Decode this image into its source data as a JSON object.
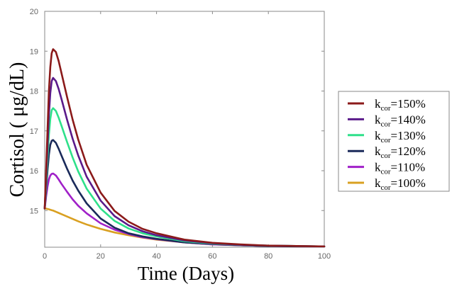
{
  "chart_data": {
    "type": "line",
    "xlabel": "Time (Days)",
    "ylabel": "Cortisol ( μg/dL)",
    "xlim": [
      0,
      100
    ],
    "ylim": [
      14.08,
      20
    ],
    "x_ticks": [
      0,
      20,
      40,
      60,
      80,
      100
    ],
    "y_ticks": [
      15,
      16,
      17,
      18,
      19,
      20
    ],
    "grid": false,
    "legend_position": "right",
    "legend_prefix": "k",
    "legend_subscript": "cor",
    "series": [
      {
        "name": "kcor=150%",
        "value_label": "=150%",
        "color": "#8b1a1a",
        "x": [
          0,
          0.5,
          1,
          1.5,
          2,
          2.5,
          3,
          4,
          5,
          6,
          8,
          10,
          12,
          15,
          20,
          25,
          30,
          35,
          40,
          50,
          60,
          70,
          80,
          90,
          100
        ],
        "y": [
          15.05,
          16.0,
          17.0,
          18.0,
          18.6,
          18.95,
          19.05,
          18.98,
          18.75,
          18.45,
          17.85,
          17.28,
          16.78,
          16.15,
          15.45,
          14.99,
          14.72,
          14.54,
          14.43,
          14.27,
          14.19,
          14.15,
          14.12,
          14.11,
          14.1
        ]
      },
      {
        "name": "kcor=140%",
        "value_label": "=140%",
        "color": "#5a1a8a",
        "x": [
          0,
          0.5,
          1,
          1.5,
          2,
          2.5,
          3,
          4,
          5,
          6,
          8,
          10,
          12,
          15,
          20,
          25,
          30,
          35,
          40,
          50,
          60,
          70,
          80,
          90,
          100
        ],
        "y": [
          15.05,
          15.8,
          16.6,
          17.4,
          17.95,
          18.25,
          18.33,
          18.25,
          18.05,
          17.8,
          17.28,
          16.8,
          16.38,
          15.85,
          15.25,
          14.86,
          14.63,
          14.48,
          14.38,
          14.25,
          14.18,
          14.14,
          14.12,
          14.11,
          14.1
        ]
      },
      {
        "name": "kcor=130%",
        "value_label": "=130%",
        "color": "#2ee08a",
        "x": [
          0,
          0.5,
          1,
          1.5,
          2,
          2.5,
          3,
          4,
          5,
          6,
          8,
          10,
          12,
          15,
          20,
          25,
          30,
          35,
          40,
          50,
          60,
          70,
          80,
          90,
          100
        ],
        "y": [
          15.05,
          15.6,
          16.3,
          16.9,
          17.3,
          17.52,
          17.57,
          17.5,
          17.33,
          17.13,
          16.72,
          16.33,
          15.98,
          15.55,
          15.05,
          14.74,
          14.55,
          14.43,
          14.35,
          14.23,
          14.17,
          14.14,
          14.12,
          14.11,
          14.1
        ]
      },
      {
        "name": "kcor=120%",
        "value_label": "=120%",
        "color": "#1a2a5a",
        "x": [
          0,
          0.5,
          1,
          1.5,
          2,
          2.5,
          3,
          4,
          5,
          6,
          8,
          10,
          12,
          15,
          20,
          25,
          30,
          35,
          40,
          50,
          60,
          70,
          80,
          90,
          100
        ],
        "y": [
          15.05,
          15.5,
          16.0,
          16.4,
          16.65,
          16.75,
          16.77,
          16.7,
          16.55,
          16.38,
          16.05,
          15.75,
          15.5,
          15.18,
          14.8,
          14.57,
          14.43,
          14.35,
          14.29,
          14.2,
          14.16,
          14.13,
          14.11,
          14.1,
          14.1
        ]
      },
      {
        "name": "kcor=110%",
        "value_label": "=110%",
        "color": "#a020c8",
        "x": [
          0,
          0.5,
          1,
          1.5,
          2,
          2.5,
          3,
          4,
          5,
          6,
          8,
          10,
          12,
          15,
          20,
          25,
          30,
          35,
          40,
          50,
          60,
          70,
          80,
          90,
          100
        ],
        "y": [
          15.05,
          15.35,
          15.6,
          15.78,
          15.88,
          15.92,
          15.93,
          15.88,
          15.78,
          15.67,
          15.47,
          15.28,
          15.12,
          14.93,
          14.68,
          14.52,
          14.41,
          14.33,
          14.28,
          14.2,
          14.15,
          14.13,
          14.11,
          14.1,
          14.1
        ]
      },
      {
        "name": "kcor=100%",
        "value_label": "=100%",
        "color": "#d9a021",
        "x": [
          0,
          0.5,
          1,
          1.5,
          2,
          2.5,
          3,
          4,
          5,
          6,
          8,
          10,
          12,
          15,
          20,
          25,
          30,
          35,
          40,
          50,
          60,
          70,
          80,
          90,
          100
        ],
        "y": [
          15.05,
          15.05,
          15.04,
          15.03,
          15.02,
          15.01,
          15.0,
          14.97,
          14.94,
          14.91,
          14.85,
          14.79,
          14.73,
          14.65,
          14.54,
          14.45,
          14.38,
          14.32,
          14.27,
          14.2,
          14.15,
          14.13,
          14.11,
          14.1,
          14.1
        ]
      }
    ]
  }
}
